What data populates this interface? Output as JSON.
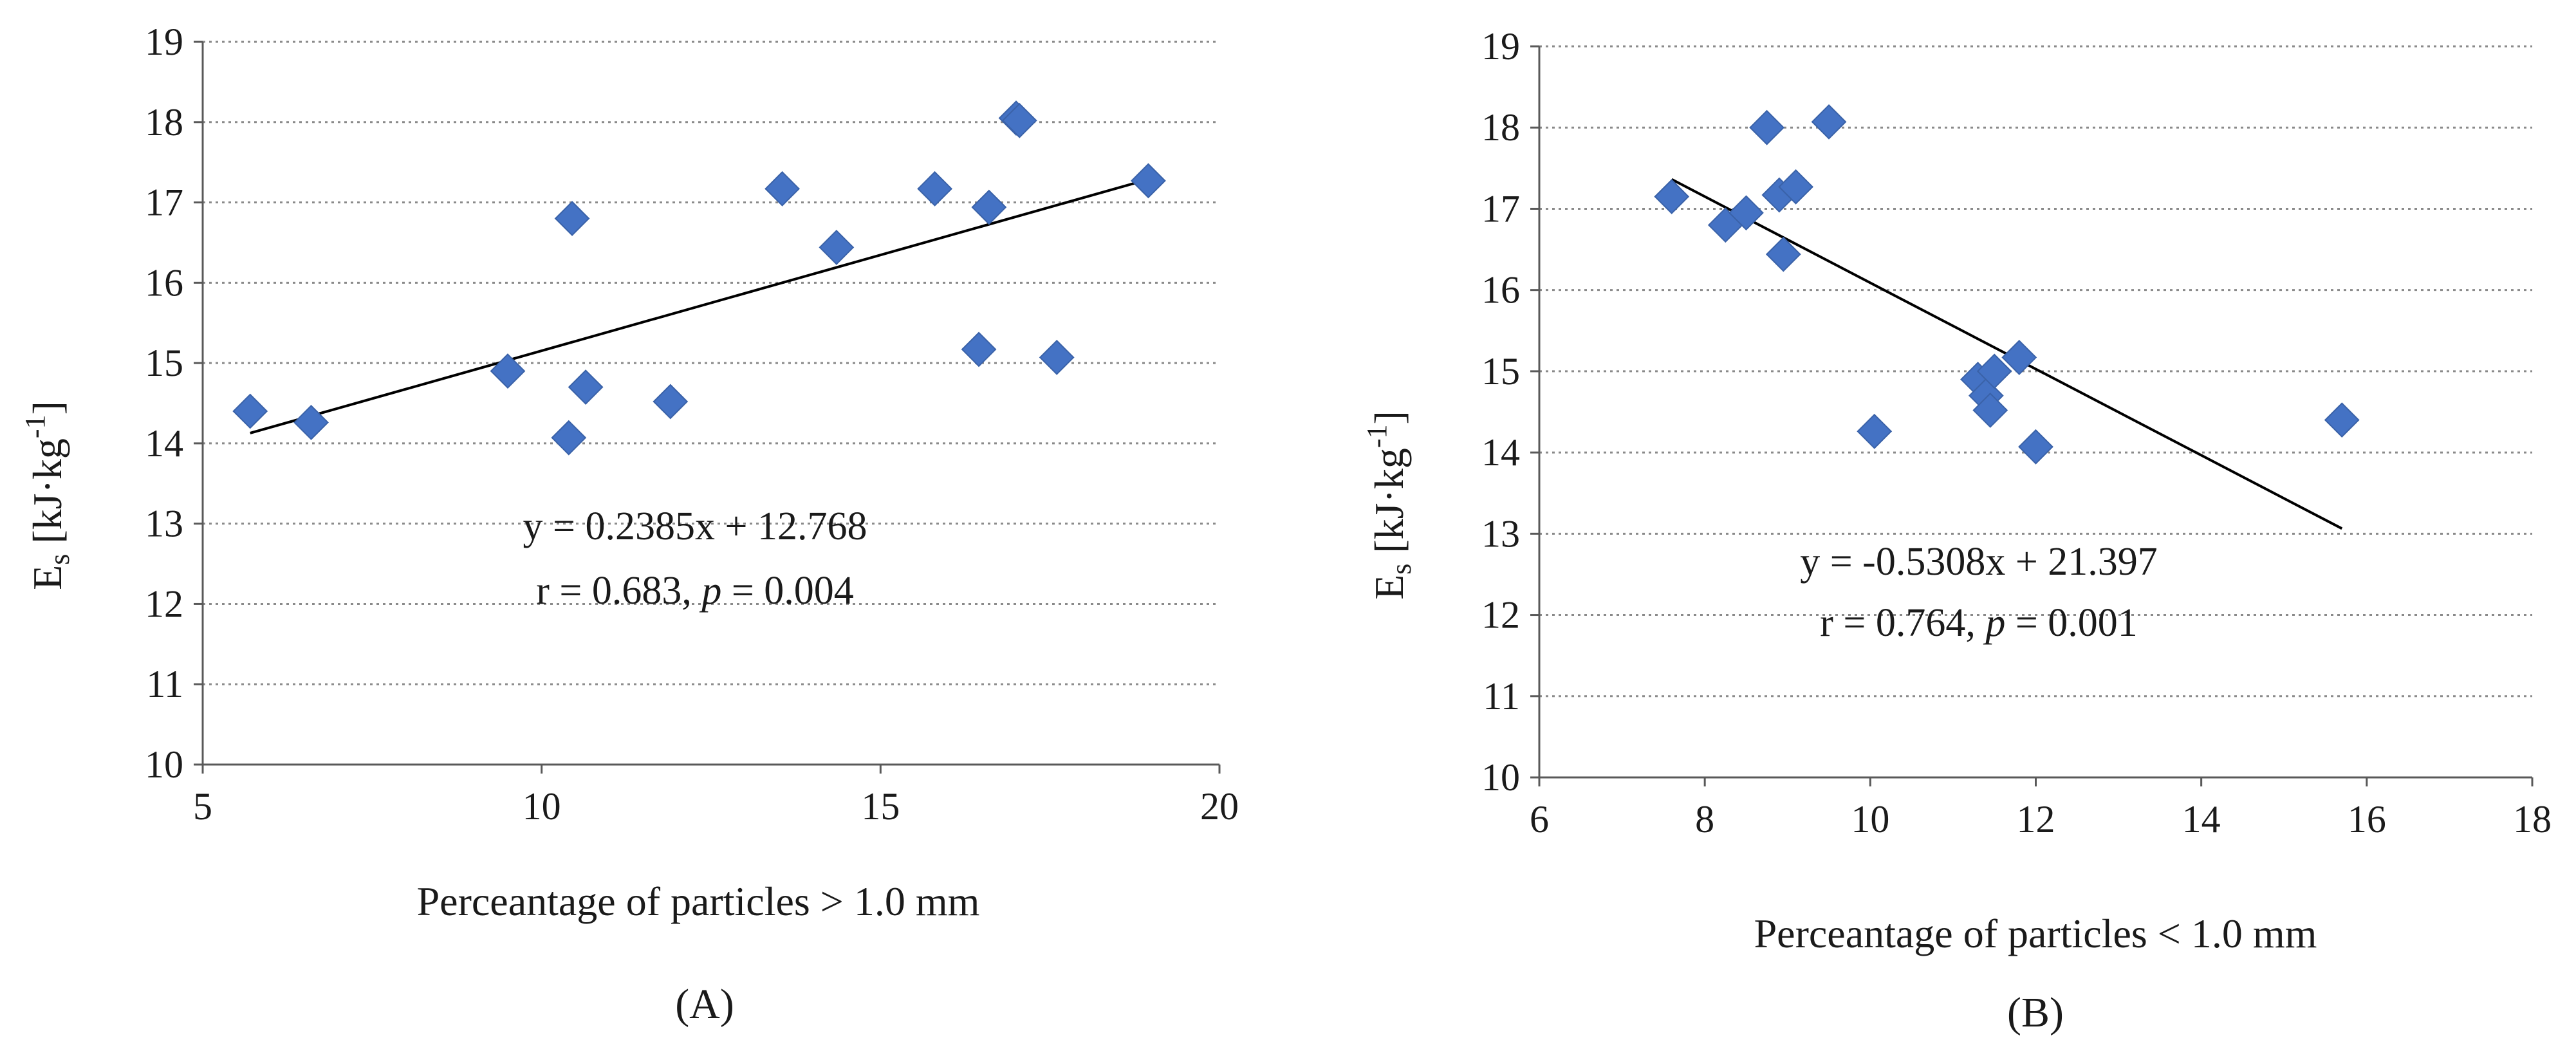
{
  "chart_data": [
    {
      "type": "scatter",
      "panel_label": "(A)",
      "xlabel": "Perceantage of particles > 1.0 mm",
      "ylabel_main": "E",
      "ylabel_sub": "s",
      "ylabel_unit": " [kJ·kg",
      "ylabel_sup": "-1",
      "ylabel_close": "]",
      "xlim": [
        5,
        20
      ],
      "ylim": [
        10,
        19
      ],
      "xticks": [
        5,
        10,
        15,
        20
      ],
      "yticks": [
        10,
        11,
        12,
        13,
        14,
        15,
        16,
        17,
        18,
        19
      ],
      "grid": "horizontal-dotted",
      "marker_color": "#4472C4",
      "points": [
        {
          "x": 5.7,
          "y": 14.4
        },
        {
          "x": 6.6,
          "y": 14.26
        },
        {
          "x": 9.5,
          "y": 14.9
        },
        {
          "x": 10.4,
          "y": 14.07
        },
        {
          "x": 10.45,
          "y": 16.8
        },
        {
          "x": 10.65,
          "y": 14.7
        },
        {
          "x": 11.9,
          "y": 14.52
        },
        {
          "x": 13.55,
          "y": 17.17
        },
        {
          "x": 14.35,
          "y": 16.44
        },
        {
          "x": 15.8,
          "y": 17.17
        },
        {
          "x": 16.45,
          "y": 15.17
        },
        {
          "x": 16.6,
          "y": 16.94
        },
        {
          "x": 17.0,
          "y": 18.05
        },
        {
          "x": 17.05,
          "y": 18.02
        },
        {
          "x": 17.6,
          "y": 15.07
        },
        {
          "x": 18.95,
          "y": 17.27
        }
      ],
      "trendline": {
        "slope": 0.2385,
        "intercept": 12.768,
        "x_start": 5.7,
        "x_end": 18.95
      },
      "equation": "y = 0.2385x + 12.768",
      "stats_r": "r = 0.683, ",
      "stats_p_symbol": "p",
      "stats_p_value": " = 0.004"
    },
    {
      "type": "scatter",
      "panel_label": "(B)",
      "xlabel": "Perceantage of particles < 1.0 mm",
      "ylabel_main": "E",
      "ylabel_sub": "s",
      "ylabel_unit": " [kJ·kg",
      "ylabel_sup": "-1",
      "ylabel_close": "]",
      "xlim": [
        6,
        18
      ],
      "ylim": [
        10,
        19
      ],
      "xticks": [
        6,
        8,
        10,
        12,
        14,
        16,
        18
      ],
      "yticks": [
        10,
        11,
        12,
        13,
        14,
        15,
        16,
        17,
        18,
        19
      ],
      "grid": "horizontal-dotted",
      "marker_color": "#4472C4",
      "points": [
        {
          "x": 7.6,
          "y": 17.15
        },
        {
          "x": 8.25,
          "y": 16.8
        },
        {
          "x": 8.5,
          "y": 16.95
        },
        {
          "x": 8.75,
          "y": 18.0
        },
        {
          "x": 8.9,
          "y": 17.17
        },
        {
          "x": 8.95,
          "y": 16.44
        },
        {
          "x": 9.1,
          "y": 17.27
        },
        {
          "x": 9.5,
          "y": 18.07
        },
        {
          "x": 10.05,
          "y": 14.26
        },
        {
          "x": 11.3,
          "y": 14.9
        },
        {
          "x": 11.4,
          "y": 14.7
        },
        {
          "x": 11.45,
          "y": 14.52
        },
        {
          "x": 11.5,
          "y": 15.0
        },
        {
          "x": 11.8,
          "y": 15.17
        },
        {
          "x": 12.0,
          "y": 14.07
        },
        {
          "x": 15.7,
          "y": 14.4
        }
      ],
      "trendline": {
        "slope": -0.5308,
        "intercept": 21.397,
        "x_start": 7.6,
        "x_end": 15.7
      },
      "equation": "y = -0.5308x + 21.397",
      "stats_r": "r = 0.764, ",
      "stats_p_symbol": "p",
      "stats_p_value": " = 0.001"
    }
  ]
}
